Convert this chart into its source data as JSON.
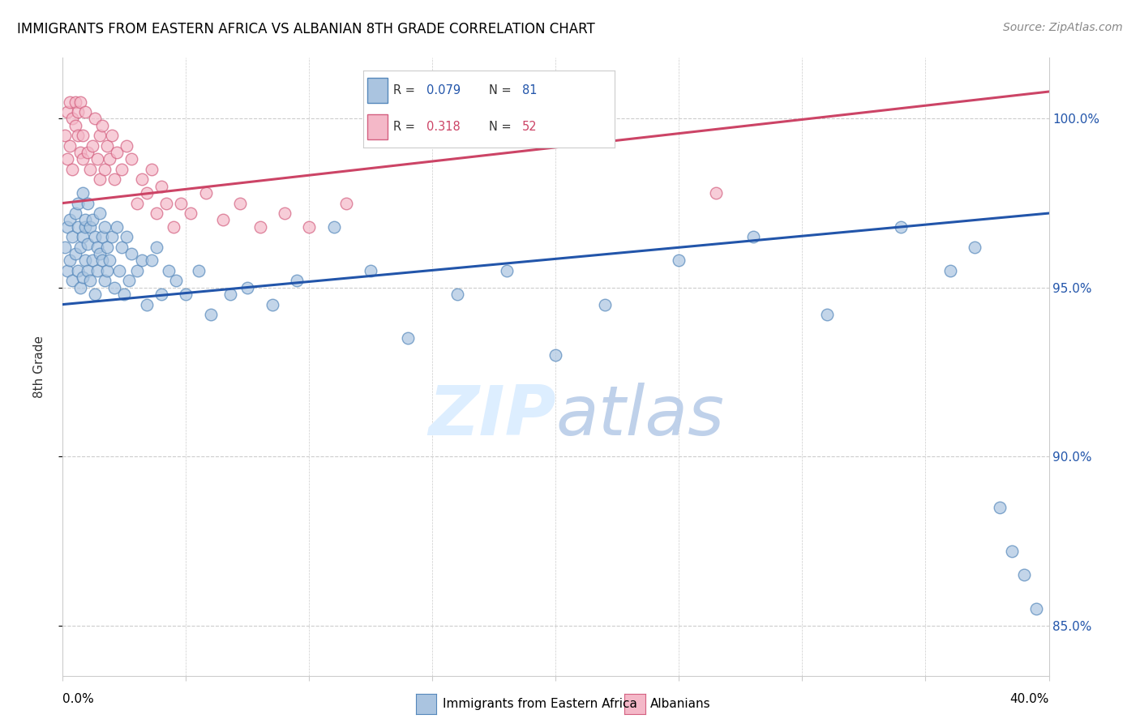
{
  "title": "IMMIGRANTS FROM EASTERN AFRICA VS ALBANIAN 8TH GRADE CORRELATION CHART",
  "source": "Source: ZipAtlas.com",
  "ylabel": "8th Grade",
  "yticks": [
    85.0,
    90.0,
    95.0,
    100.0
  ],
  "ytick_labels": [
    "85.0%",
    "90.0%",
    "95.0%",
    "100.0%"
  ],
  "xmin": 0.0,
  "xmax": 0.4,
  "ymin": 83.5,
  "ymax": 101.8,
  "legend_r_blue": "0.079",
  "legend_n_blue": "81",
  "legend_r_pink": "0.318",
  "legend_n_pink": "52",
  "blue_color": "#aac4e0",
  "blue_edge_color": "#5588bb",
  "pink_color": "#f4b8c8",
  "pink_edge_color": "#d46080",
  "blue_line_color": "#2255aa",
  "pink_line_color": "#cc4466",
  "watermark_color": "#ddeeff",
  "blue_line_y0": 94.5,
  "blue_line_y1": 97.2,
  "pink_line_y0": 97.5,
  "pink_line_y1": 100.8,
  "blue_scatter_x": [
    0.001,
    0.002,
    0.002,
    0.003,
    0.003,
    0.004,
    0.004,
    0.005,
    0.005,
    0.006,
    0.006,
    0.006,
    0.007,
    0.007,
    0.008,
    0.008,
    0.008,
    0.009,
    0.009,
    0.009,
    0.01,
    0.01,
    0.01,
    0.011,
    0.011,
    0.012,
    0.012,
    0.013,
    0.013,
    0.014,
    0.014,
    0.015,
    0.015,
    0.016,
    0.016,
    0.017,
    0.017,
    0.018,
    0.018,
    0.019,
    0.02,
    0.021,
    0.022,
    0.023,
    0.024,
    0.025,
    0.026,
    0.027,
    0.028,
    0.03,
    0.032,
    0.034,
    0.036,
    0.038,
    0.04,
    0.043,
    0.046,
    0.05,
    0.055,
    0.06,
    0.068,
    0.075,
    0.085,
    0.095,
    0.11,
    0.125,
    0.14,
    0.16,
    0.18,
    0.2,
    0.22,
    0.25,
    0.28,
    0.31,
    0.34,
    0.36,
    0.37,
    0.38,
    0.385,
    0.39,
    0.395
  ],
  "blue_scatter_y": [
    96.2,
    96.8,
    95.5,
    97.0,
    95.8,
    96.5,
    95.2,
    97.2,
    96.0,
    96.8,
    95.5,
    97.5,
    96.2,
    95.0,
    97.8,
    96.5,
    95.3,
    96.8,
    95.8,
    97.0,
    97.5,
    96.3,
    95.5,
    96.8,
    95.2,
    97.0,
    95.8,
    96.5,
    94.8,
    96.2,
    95.5,
    97.2,
    96.0,
    95.8,
    96.5,
    95.2,
    96.8,
    95.5,
    96.2,
    95.8,
    96.5,
    95.0,
    96.8,
    95.5,
    96.2,
    94.8,
    96.5,
    95.2,
    96.0,
    95.5,
    95.8,
    94.5,
    95.8,
    96.2,
    94.8,
    95.5,
    95.2,
    94.8,
    95.5,
    94.2,
    94.8,
    95.0,
    94.5,
    95.2,
    96.8,
    95.5,
    93.5,
    94.8,
    95.5,
    93.0,
    94.5,
    95.8,
    96.5,
    94.2,
    96.8,
    95.5,
    96.2,
    88.5,
    87.2,
    86.5,
    85.5
  ],
  "pink_scatter_x": [
    0.001,
    0.002,
    0.002,
    0.003,
    0.003,
    0.004,
    0.004,
    0.005,
    0.005,
    0.006,
    0.006,
    0.007,
    0.007,
    0.008,
    0.008,
    0.009,
    0.01,
    0.011,
    0.012,
    0.013,
    0.014,
    0.015,
    0.015,
    0.016,
    0.017,
    0.018,
    0.019,
    0.02,
    0.021,
    0.022,
    0.024,
    0.026,
    0.028,
    0.03,
    0.032,
    0.034,
    0.036,
    0.038,
    0.04,
    0.042,
    0.045,
    0.048,
    0.052,
    0.058,
    0.065,
    0.072,
    0.08,
    0.09,
    0.1,
    0.115,
    0.2,
    0.265
  ],
  "pink_scatter_y": [
    99.5,
    100.2,
    98.8,
    100.5,
    99.2,
    100.0,
    98.5,
    99.8,
    100.5,
    99.5,
    100.2,
    99.0,
    100.5,
    98.8,
    99.5,
    100.2,
    99.0,
    98.5,
    99.2,
    100.0,
    98.8,
    99.5,
    98.2,
    99.8,
    98.5,
    99.2,
    98.8,
    99.5,
    98.2,
    99.0,
    98.5,
    99.2,
    98.8,
    97.5,
    98.2,
    97.8,
    98.5,
    97.2,
    98.0,
    97.5,
    96.8,
    97.5,
    97.2,
    97.8,
    97.0,
    97.5,
    96.8,
    97.2,
    96.8,
    97.5,
    99.5,
    97.8
  ]
}
